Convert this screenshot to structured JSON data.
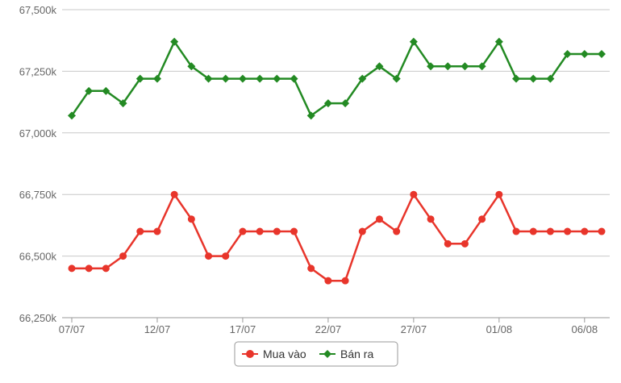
{
  "chart_data": {
    "type": "line",
    "title": "",
    "xlabel": "",
    "ylabel": "",
    "ylim": [
      66250,
      67500
    ],
    "yticks": [
      {
        "value": 66250,
        "label": "66,250k"
      },
      {
        "value": 66500,
        "label": "66,500k"
      },
      {
        "value": 66750,
        "label": "66,750k"
      },
      {
        "value": 67000,
        "label": "67,000k"
      },
      {
        "value": 67250,
        "label": "67,250k"
      },
      {
        "value": 67500,
        "label": "67,500k"
      }
    ],
    "x": [
      "07/07",
      "08/07",
      "09/07",
      "10/07",
      "11/07",
      "12/07",
      "13/07",
      "14/07",
      "15/07",
      "16/07",
      "17/07",
      "18/07",
      "19/07",
      "20/07",
      "21/07",
      "22/07",
      "23/07",
      "24/07",
      "25/07",
      "26/07",
      "27/07",
      "28/07",
      "29/07",
      "30/07",
      "31/07",
      "01/08",
      "02/08",
      "03/08",
      "04/08",
      "05/08",
      "06/08",
      "07/08"
    ],
    "xtick_labels": [
      "07/07",
      "12/07",
      "17/07",
      "22/07",
      "27/07",
      "01/08",
      "06/08"
    ],
    "grid": true,
    "legend_position": "bottom-center",
    "series": [
      {
        "name": "Mua vào",
        "color": "#e8352b",
        "marker": "circle",
        "values": [
          66450,
          66450,
          66450,
          66500,
          66600,
          66600,
          66750,
          66650,
          66500,
          66500,
          66600,
          66600,
          66600,
          66600,
          66450,
          66400,
          66400,
          66600,
          66650,
          66600,
          66750,
          66650,
          66550,
          66550,
          66650,
          66750,
          66600,
          66600,
          66600,
          66600,
          66600,
          66600
        ]
      },
      {
        "name": "Bán ra",
        "color": "#238a23",
        "marker": "diamond",
        "values": [
          67070,
          67170,
          67170,
          67120,
          67220,
          67220,
          67370,
          67270,
          67220,
          67220,
          67220,
          67220,
          67220,
          67220,
          67070,
          67120,
          67120,
          67220,
          67270,
          67220,
          67370,
          67270,
          67270,
          67270,
          67270,
          67370,
          67220,
          67220,
          67220,
          67320,
          67320,
          67320
        ]
      }
    ]
  }
}
